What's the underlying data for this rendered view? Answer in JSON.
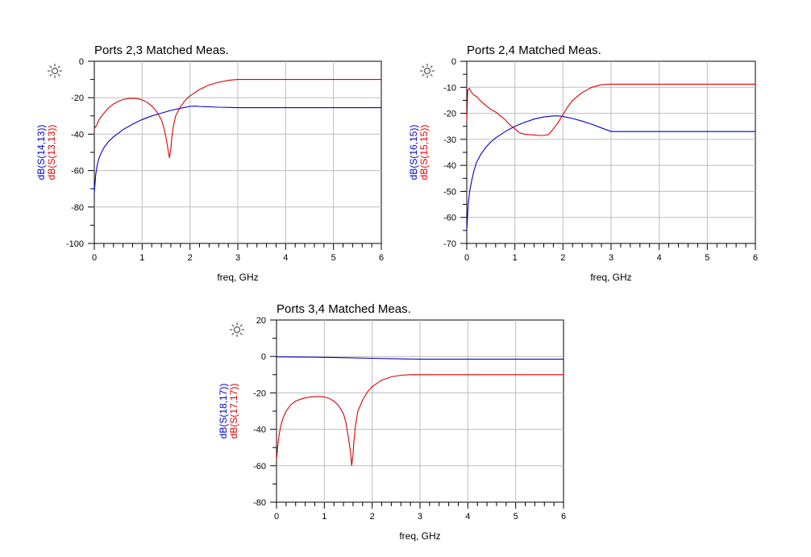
{
  "chart_data": [
    {
      "type": "line",
      "title": "Ports 2,3 Matched Meas.",
      "xlabel": "freq, GHz",
      "ylabel_parts": [
        {
          "text": "dB(S(14,13))",
          "color": "#0000cc"
        },
        {
          "text": "dB(S(13,13))",
          "color": "#dd0000"
        }
      ],
      "xlim": [
        0,
        6
      ],
      "ylim": [
        -100,
        0
      ],
      "xticks": [
        "0",
        "1",
        "2",
        "3",
        "4",
        "5",
        "6"
      ],
      "yticks": [
        "0",
        "-20",
        "-40",
        "-60",
        "-80",
        "-100"
      ],
      "grid": true,
      "series": [
        {
          "name": "dB(S(14,13))",
          "color": "#0000cc",
          "x": [
            0.0,
            0.03,
            0.06,
            0.1,
            0.15,
            0.2,
            0.3,
            0.4,
            0.5,
            0.6,
            0.8,
            1.0,
            1.2,
            1.4,
            1.6,
            1.8,
            2.0,
            2.1,
            2.2,
            2.4,
            2.6,
            2.8,
            2.9,
            3.0,
            4.0,
            5.0,
            6.0
          ],
          "y": [
            -72,
            -62,
            -57,
            -53,
            -50,
            -47.5,
            -44,
            -41.5,
            -39.5,
            -37.5,
            -34.5,
            -32,
            -30,
            -28.5,
            -27,
            -25.8,
            -24.8,
            -24.6,
            -24.8,
            -25,
            -25.2,
            -25.3,
            -25.4,
            -25.5,
            -25.5,
            -25.5,
            -25.5
          ]
        },
        {
          "name": "dB(S(13,13))",
          "color": "#dd0000",
          "x": [
            0.0,
            0.05,
            0.1,
            0.2,
            0.3,
            0.4,
            0.5,
            0.6,
            0.7,
            0.8,
            0.9,
            1.0,
            1.1,
            1.2,
            1.3,
            1.4,
            1.45,
            1.5,
            1.55,
            1.57,
            1.6,
            1.62,
            1.65,
            1.7,
            1.8,
            1.9,
            2.0,
            2.2,
            2.4,
            2.6,
            2.8,
            2.9,
            3.0,
            4.0,
            5.0,
            6.0
          ],
          "y": [
            -37,
            -35,
            -32,
            -28.5,
            -25.5,
            -23.5,
            -22,
            -21,
            -20.5,
            -20.3,
            -20.5,
            -21.2,
            -22.5,
            -24.5,
            -27.5,
            -32,
            -36,
            -42,
            -50,
            -53,
            -48,
            -42,
            -36,
            -30,
            -25,
            -21.5,
            -19,
            -15.5,
            -13,
            -11.5,
            -10.5,
            -10.2,
            -10,
            -10,
            -10,
            -10
          ]
        }
      ]
    },
    {
      "type": "line",
      "title": "Ports 2,4 Matched Meas.",
      "xlabel": "freq, GHz",
      "ylabel_parts": [
        {
          "text": "dB(S(16,15))",
          "color": "#0000cc"
        },
        {
          "text": "dB(S(15,15))",
          "color": "#dd0000"
        }
      ],
      "xlim": [
        0,
        6
      ],
      "ylim": [
        -70,
        0
      ],
      "xticks": [
        "0",
        "1",
        "2",
        "3",
        "4",
        "5",
        "6"
      ],
      "yticks": [
        "0",
        "-10",
        "-20",
        "-30",
        "-40",
        "-50",
        "-60",
        "-70"
      ],
      "grid": true,
      "series": [
        {
          "name": "dB(S(16,15))",
          "color": "#0000cc",
          "x": [
            0.0,
            0.03,
            0.06,
            0.1,
            0.15,
            0.2,
            0.3,
            0.4,
            0.5,
            0.6,
            0.8,
            1.0,
            1.2,
            1.4,
            1.6,
            1.8,
            1.9,
            2.0,
            2.2,
            2.4,
            2.6,
            2.8,
            3.0,
            4.0,
            5.0,
            6.0
          ],
          "y": [
            -65,
            -55,
            -50,
            -46,
            -42,
            -39,
            -35.5,
            -33,
            -31,
            -29.5,
            -27,
            -25,
            -23.5,
            -22.2,
            -21.4,
            -21,
            -21,
            -21.2,
            -22,
            -23,
            -24.2,
            -25.6,
            -27,
            -27,
            -27,
            -27
          ]
        },
        {
          "name": "dB(S(15,15))",
          "color": "#dd0000",
          "x": [
            0.0,
            0.02,
            0.05,
            0.1,
            0.15,
            0.2,
            0.25,
            0.3,
            0.4,
            0.5,
            0.6,
            0.7,
            0.8,
            0.9,
            1.0,
            1.1,
            1.2,
            1.3,
            1.4,
            1.5,
            1.6,
            1.7,
            1.8,
            1.9,
            2.0,
            2.1,
            2.2,
            2.4,
            2.6,
            2.8,
            3.0,
            4.0,
            5.0,
            6.0
          ],
          "y": [
            -23,
            -11,
            -10.5,
            -12,
            -13,
            -13.5,
            -14.5,
            -15.5,
            -17,
            -18.5,
            -19.5,
            -21,
            -22.5,
            -24.5,
            -26,
            -27.5,
            -28,
            -28.2,
            -28.3,
            -28.5,
            -28.5,
            -28.2,
            -26,
            -23.5,
            -20.5,
            -17.5,
            -15,
            -12,
            -10,
            -9,
            -8.8,
            -8.8,
            -8.8,
            -8.8
          ]
        }
      ]
    },
    {
      "type": "line",
      "title": "Ports 3,4 Matched Meas.",
      "xlabel": "freq, GHz",
      "ylabel_parts": [
        {
          "text": "dB(S(18,17))",
          "color": "#0000cc"
        },
        {
          "text": "dB(S(17,17))",
          "color": "#dd0000"
        }
      ],
      "xlim": [
        0,
        6
      ],
      "ylim": [
        -80,
        20
      ],
      "xticks": [
        "0",
        "1",
        "2",
        "3",
        "4",
        "5",
        "6"
      ],
      "yticks": [
        "20",
        "0",
        "-20",
        "-40",
        "-60",
        "-80"
      ],
      "grid": true,
      "series": [
        {
          "name": "dB(S(18,17))",
          "color": "#0000cc",
          "x": [
            0.0,
            0.5,
            1.0,
            1.5,
            2.0,
            2.5,
            3.0,
            4.0,
            5.0,
            6.0
          ],
          "y": [
            -0.2,
            -0.3,
            -0.5,
            -0.7,
            -1.0,
            -1.3,
            -1.5,
            -1.5,
            -1.5,
            -1.5
          ]
        },
        {
          "name": "dB(S(17,17))",
          "color": "#dd0000",
          "x": [
            0.0,
            0.03,
            0.06,
            0.1,
            0.15,
            0.2,
            0.3,
            0.4,
            0.5,
            0.6,
            0.7,
            0.8,
            0.9,
            1.0,
            1.1,
            1.2,
            1.3,
            1.4,
            1.45,
            1.5,
            1.55,
            1.57,
            1.6,
            1.62,
            1.65,
            1.7,
            1.8,
            1.9,
            2.0,
            2.2,
            2.4,
            2.6,
            2.8,
            2.9,
            3.0,
            4.0,
            5.0,
            6.0
          ],
          "y": [
            -57,
            -48,
            -42,
            -37,
            -33,
            -30,
            -26.5,
            -24.5,
            -23.5,
            -22.8,
            -22.3,
            -22,
            -22,
            -22.2,
            -23,
            -24.5,
            -27,
            -31.5,
            -36,
            -44,
            -53,
            -60,
            -54,
            -46,
            -38,
            -30,
            -24,
            -19.5,
            -16.5,
            -13,
            -11.2,
            -10.3,
            -10,
            -10,
            -10,
            -10,
            -10,
            -10
          ]
        }
      ]
    }
  ]
}
